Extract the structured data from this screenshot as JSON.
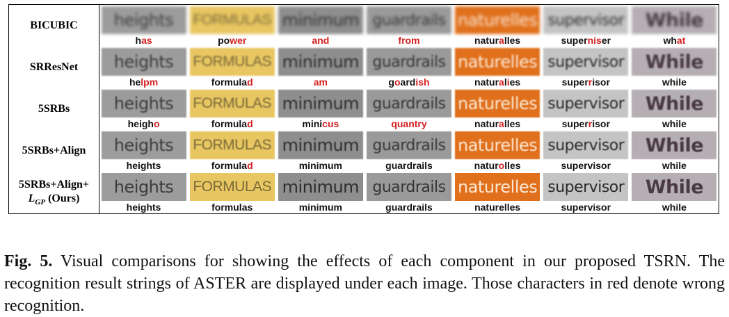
{
  "rows": [
    {
      "label": "BICUBIC",
      "cells": [
        {
          "thumb": "heights",
          "words": [
            {
              "t": "h",
              "e": false
            },
            {
              "t": "as",
              "e": true
            }
          ]
        },
        {
          "thumb": "FORMULAS",
          "words": [
            {
              "t": "po",
              "e": false
            },
            {
              "t": "wer",
              "e": true
            }
          ]
        },
        {
          "thumb": "minimum",
          "words": [
            {
              "t": "and",
              "e": true
            }
          ]
        },
        {
          "thumb": "guardrails",
          "words": [
            {
              "t": "from",
              "e": true
            }
          ]
        },
        {
          "thumb": "naturelles",
          "words": [
            {
              "t": "natur",
              "e": false
            },
            {
              "t": "a",
              "e": true
            },
            {
              "t": "lles",
              "e": false
            }
          ]
        },
        {
          "thumb": "supervisor",
          "words": [
            {
              "t": "super",
              "e": false
            },
            {
              "t": "nis",
              "e": true
            },
            {
              "t": "er",
              "e": false
            }
          ]
        },
        {
          "thumb": "While",
          "words": [
            {
              "t": "wh",
              "e": false
            },
            {
              "t": "at",
              "e": true
            }
          ]
        }
      ]
    },
    {
      "label": "SRResNet",
      "cells": [
        {
          "thumb": "heights",
          "words": [
            {
              "t": "he",
              "e": false
            },
            {
              "t": "lpm",
              "e": true
            }
          ]
        },
        {
          "thumb": "FORMULAS",
          "words": [
            {
              "t": "formula",
              "e": false
            },
            {
              "t": "d",
              "e": true
            }
          ]
        },
        {
          "thumb": "minimum",
          "words": [
            {
              "t": "am",
              "e": true
            }
          ]
        },
        {
          "thumb": "guardrails",
          "words": [
            {
              "t": "g",
              "e": false
            },
            {
              "t": "o",
              "e": true
            },
            {
              "t": "ard",
              "e": false
            },
            {
              "t": "ish",
              "e": true
            }
          ]
        },
        {
          "thumb": "naturelles",
          "words": [
            {
              "t": "natur",
              "e": false
            },
            {
              "t": "a",
              "e": true
            },
            {
              "t": "l",
              "e": false
            },
            {
              "t": "i",
              "e": true
            },
            {
              "t": "es",
              "e": false
            }
          ]
        },
        {
          "thumb": "supervisor",
          "words": [
            {
              "t": "super",
              "e": false
            },
            {
              "t": "r",
              "e": true
            },
            {
              "t": "isor",
              "e": false
            }
          ]
        },
        {
          "thumb": "While",
          "words": [
            {
              "t": "while",
              "e": false
            }
          ]
        }
      ]
    },
    {
      "label": "5SRBs",
      "cells": [
        {
          "thumb": "heights",
          "words": [
            {
              "t": "heigh",
              "e": false
            },
            {
              "t": "o",
              "e": true
            }
          ]
        },
        {
          "thumb": "FORMULAS",
          "words": [
            {
              "t": "formula",
              "e": false
            },
            {
              "t": "d",
              "e": true
            }
          ]
        },
        {
          "thumb": "minimum",
          "words": [
            {
              "t": "mini",
              "e": false
            },
            {
              "t": "cus",
              "e": true
            }
          ]
        },
        {
          "thumb": "guardrails",
          "words": [
            {
              "t": "quantry",
              "e": true
            }
          ]
        },
        {
          "thumb": "naturelles",
          "words": [
            {
              "t": "natur",
              "e": false
            },
            {
              "t": "a",
              "e": true
            },
            {
              "t": "lles",
              "e": false
            }
          ]
        },
        {
          "thumb": "supervisor",
          "words": [
            {
              "t": "super",
              "e": false
            },
            {
              "t": "r",
              "e": true
            },
            {
              "t": "isor",
              "e": false
            }
          ]
        },
        {
          "thumb": "While",
          "words": [
            {
              "t": "while",
              "e": false
            }
          ]
        }
      ]
    },
    {
      "label": "5SRBs+Align",
      "cells": [
        {
          "thumb": "heights",
          "words": [
            {
              "t": "heights",
              "e": false
            }
          ]
        },
        {
          "thumb": "FORMULAS",
          "words": [
            {
              "t": "formula",
              "e": false
            },
            {
              "t": "d",
              "e": true
            }
          ]
        },
        {
          "thumb": "minimum",
          "words": [
            {
              "t": "minimum",
              "e": false
            }
          ]
        },
        {
          "thumb": "guardrails",
          "words": [
            {
              "t": "guardrails",
              "e": false
            }
          ]
        },
        {
          "thumb": "naturelles",
          "words": [
            {
              "t": "natur",
              "e": false
            },
            {
              "t": "o",
              "e": true
            },
            {
              "t": "lles",
              "e": false
            }
          ]
        },
        {
          "thumb": "supervisor",
          "words": [
            {
              "t": "supervisor",
              "e": false
            }
          ]
        },
        {
          "thumb": "While",
          "words": [
            {
              "t": "while",
              "e": false
            }
          ]
        }
      ]
    },
    {
      "label": "5SRBs+Align+",
      "label_sub_main": "L",
      "label_sub_script": "GP",
      "label_sub_suffix": " (Ours)",
      "cells": [
        {
          "thumb": "heights",
          "words": [
            {
              "t": "heights",
              "e": false
            }
          ]
        },
        {
          "thumb": "FORMULAS",
          "words": [
            {
              "t": "formulas",
              "e": false
            }
          ]
        },
        {
          "thumb": "minimum",
          "words": [
            {
              "t": "minimum",
              "e": false
            }
          ]
        },
        {
          "thumb": "guardrails",
          "words": [
            {
              "t": "guardrails",
              "e": false
            }
          ]
        },
        {
          "thumb": "naturelles",
          "words": [
            {
              "t": "naturelles",
              "e": false
            }
          ]
        },
        {
          "thumb": "supervisor",
          "words": [
            {
              "t": "supervisor",
              "e": false
            }
          ]
        },
        {
          "thumb": "While",
          "words": [
            {
              "t": "while",
              "e": false
            }
          ]
        }
      ]
    }
  ],
  "thumb_styles": [
    {
      "bg": "#9c9c9c",
      "fg": "#3c3c3c"
    },
    {
      "bg": "#e8c661",
      "fg": "#7a6a3a"
    },
    {
      "bg": "#8e8e8e",
      "fg": "#2e2e2e"
    },
    {
      "bg": "#9a9a9a",
      "fg": "#353535"
    },
    {
      "bg": "#e0701c",
      "fg": "#fbe7d4"
    },
    {
      "bg": "#c4c4c4",
      "fg": "#2a2a2a"
    },
    {
      "bg": "#b5aeb3",
      "fg": "#4a3a44"
    }
  ],
  "blur_by_row": [
    2.2,
    1.0,
    0.8,
    0.4,
    0.0
  ],
  "error_color": "#d61f1f",
  "caption": {
    "label": "Fig. 5.",
    "text": " Visual comparisons for showing the effects of each component in our proposed TSRN. The recognition result strings of ASTER are displayed under each image. Those characters in red denote wrong recognition."
  }
}
